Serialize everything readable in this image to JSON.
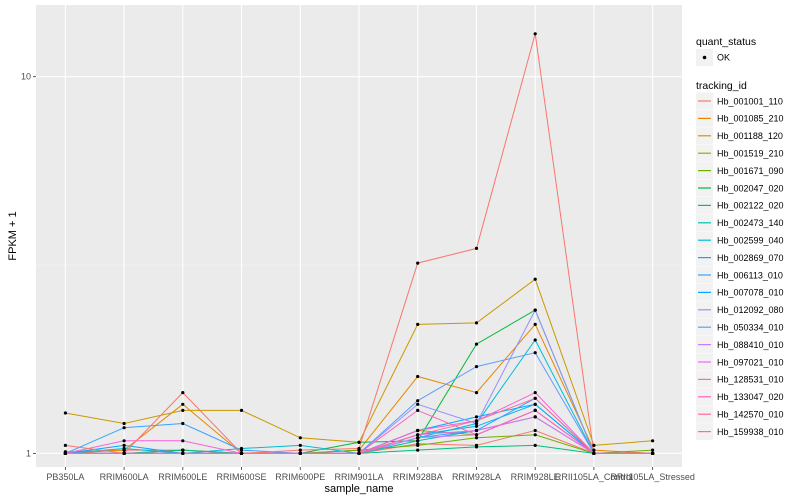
{
  "chart_data": {
    "type": "line",
    "xlabel": "sample_name",
    "ylabel": "FPKM + 1",
    "y_scale": "log10",
    "ylim": [
      0.92,
      15.5
    ],
    "y_ticks": [
      {
        "value": 1,
        "label": "1"
      },
      {
        "value": 10,
        "label": "10"
      }
    ],
    "grid": true,
    "background": "#ebebeb",
    "categories": [
      "PB350LA",
      "RRIM600LA",
      "RRIM600LE",
      "RRIM600SE",
      "RRIM600PE",
      "RRIM901LA",
      "RRIM928BA",
      "RRIM928LA",
      "RRIM928LE",
      "RRII105LA_Control",
      "RRII105LA_Stressed"
    ],
    "legend_placement": "right",
    "legend_shape": {
      "title": "quant_status",
      "entries": [
        "OK"
      ]
    },
    "legend_color_title": "tracking_id",
    "series": [
      {
        "name": "Hb_001001_110",
        "color": "#F8766D",
        "values": [
          1.01,
          1.02,
          1.02,
          1.0,
          1.0,
          1.0,
          1.06,
          1.05,
          1.15,
          1.0,
          1.0
        ]
      },
      {
        "name": "Hb_001085_210",
        "color": "#E58700",
        "values": [
          1.0,
          1.02,
          1.35,
          1.0,
          1.0,
          1.02,
          1.6,
          1.45,
          2.2,
          1.02,
          1.0
        ]
      },
      {
        "name": "Hb_001188_120",
        "color": "#C99800",
        "values": [
          1.28,
          1.2,
          1.3,
          1.3,
          1.1,
          1.07,
          2.2,
          2.22,
          2.9,
          1.05,
          1.08
        ]
      },
      {
        "name": "Hb_001519_210",
        "color": "#A3A500",
        "values": [
          1.0,
          1.0,
          1.02,
          1.0,
          1.0,
          1.0,
          1.15,
          1.12,
          1.3,
          1.0,
          1.0
        ]
      },
      {
        "name": "Hb_001671_090",
        "color": "#6BB100",
        "values": [
          1.0,
          1.0,
          1.0,
          1.0,
          1.0,
          1.02,
          1.05,
          1.1,
          1.12,
          1.0,
          1.02
        ]
      },
      {
        "name": "Hb_002047_020",
        "color": "#00BA38",
        "values": [
          1.0,
          1.0,
          1.0,
          1.0,
          1.0,
          1.07,
          1.08,
          1.95,
          2.4,
          1.0,
          1.0
        ]
      },
      {
        "name": "Hb_002122_020",
        "color": "#00BF7D",
        "values": [
          1.0,
          1.0,
          1.02,
          1.0,
          1.0,
          1.0,
          1.02,
          1.04,
          1.05,
          1.0,
          1.0
        ]
      },
      {
        "name": "Hb_002473_140",
        "color": "#00C0AF",
        "values": [
          1.0,
          1.0,
          1.0,
          1.0,
          1.0,
          1.0,
          1.08,
          1.15,
          1.25,
          1.0,
          1.0
        ]
      },
      {
        "name": "Hb_002599_040",
        "color": "#00BCD8",
        "values": [
          1.0,
          1.03,
          1.0,
          1.03,
          1.05,
          1.0,
          1.1,
          1.2,
          2.0,
          1.0,
          1.0
        ]
      },
      {
        "name": "Hb_002869_070",
        "color": "#00B0F6",
        "values": [
          1.0,
          1.0,
          1.0,
          1.0,
          1.0,
          1.0,
          1.12,
          1.18,
          1.35,
          1.0,
          1.0
        ]
      },
      {
        "name": "Hb_006113_010",
        "color": "#35A2FF",
        "values": [
          1.0,
          1.17,
          1.2,
          1.02,
          1.0,
          1.0,
          1.1,
          1.15,
          1.4,
          1.0,
          1.0
        ]
      },
      {
        "name": "Hb_007078_010",
        "color": "#00A9FF",
        "values": [
          1.0,
          1.05,
          1.0,
          1.0,
          1.0,
          1.0,
          1.15,
          1.25,
          1.35,
          1.0,
          1.0
        ]
      },
      {
        "name": "Hb_012092_080",
        "color": "#9590FF",
        "values": [
          1.0,
          1.0,
          1.0,
          1.0,
          1.0,
          1.0,
          1.35,
          1.2,
          2.4,
          1.0,
          1.0
        ]
      },
      {
        "name": "Hb_050334_010",
        "color": "#619CFF",
        "values": [
          1.0,
          1.0,
          1.0,
          1.0,
          1.0,
          1.0,
          1.38,
          1.7,
          1.85,
          1.0,
          1.0
        ]
      },
      {
        "name": "Hb_088410_010",
        "color": "#C77CFF",
        "values": [
          1.0,
          1.0,
          1.0,
          1.0,
          1.0,
          1.0,
          1.1,
          1.12,
          1.3,
          1.0,
          1.0
        ]
      },
      {
        "name": "Hb_097021_010",
        "color": "#E76BF3",
        "values": [
          1.0,
          1.0,
          1.0,
          1.0,
          1.0,
          1.0,
          1.12,
          1.15,
          1.25,
          1.0,
          1.0
        ]
      },
      {
        "name": "Hb_128531_010",
        "color": "#FA62DB",
        "values": [
          1.0,
          1.08,
          1.08,
          1.0,
          1.0,
          1.0,
          1.15,
          1.22,
          1.45,
          1.0,
          1.0
        ]
      },
      {
        "name": "Hb_133047_020",
        "color": "#FF62BC",
        "values": [
          1.0,
          1.0,
          1.0,
          1.0,
          1.0,
          1.0,
          1.3,
          1.12,
          1.3,
          1.0,
          1.0
        ]
      },
      {
        "name": "Hb_142570_010",
        "color": "#FF6C91",
        "values": [
          1.0,
          1.0,
          1.0,
          1.0,
          1.0,
          1.0,
          1.12,
          1.22,
          1.4,
          1.0,
          1.0
        ]
      },
      {
        "name": "Hb_159938_010",
        "color": "#F8766D",
        "values": [
          1.05,
          1.0,
          1.45,
          1.0,
          1.02,
          1.03,
          3.2,
          3.5,
          13.0,
          1.0,
          1.0
        ]
      }
    ]
  }
}
